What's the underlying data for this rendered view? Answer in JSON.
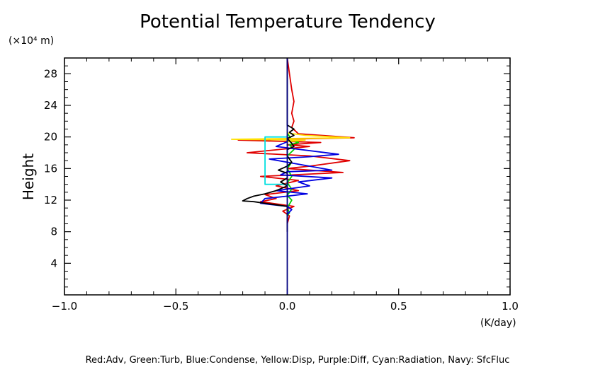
{
  "chart_data": {
    "type": "line",
    "title": "Potential Temperature Tendency",
    "ylabel": "Height",
    "yunit": "(×10⁴ m)",
    "xunit": "(K/day)",
    "xlim": [
      -1.0,
      1.0
    ],
    "ylim": [
      0,
      30
    ],
    "x_ticks": [
      -1.0,
      -0.5,
      0.0,
      0.5,
      1.0
    ],
    "x_tick_labels": [
      "−1.0",
      "−0.5",
      "0.0",
      "0.5",
      "1.0"
    ],
    "y_ticks": [
      4,
      8,
      12,
      16,
      20,
      24,
      28
    ],
    "y_tick_labels": [
      "4",
      "8",
      "12",
      "16",
      "20",
      "24",
      "28"
    ],
    "grid": false,
    "legend_text": "Red:Adv, Green:Turb, Blue:Condense, Yellow:Disp, Purple:Diff, Cyan:Radiation, Navy: SfcFluc",
    "series": [
      {
        "name": "Red:Adv",
        "color": "#e00000",
        "points": [
          [
            0.0,
            30.0
          ],
          [
            0.01,
            28.0
          ],
          [
            0.02,
            26.0
          ],
          [
            0.03,
            24.5
          ],
          [
            0.02,
            23.0
          ],
          [
            0.03,
            22.0
          ],
          [
            0.02,
            21.2
          ],
          [
            0.05,
            20.4
          ],
          [
            0.3,
            19.9
          ],
          [
            -0.22,
            19.6
          ],
          [
            0.15,
            19.3
          ],
          [
            0.0,
            19.0
          ],
          [
            0.1,
            18.8
          ],
          [
            -0.18,
            18.0
          ],
          [
            0.1,
            17.6
          ],
          [
            0.28,
            17.0
          ],
          [
            0.1,
            16.3
          ],
          [
            0.0,
            16.0
          ],
          [
            0.25,
            15.5
          ],
          [
            -0.12,
            15.0
          ],
          [
            0.05,
            14.5
          ],
          [
            -0.05,
            13.8
          ],
          [
            0.05,
            13.2
          ],
          [
            -0.1,
            12.7
          ],
          [
            -0.05,
            12.2
          ],
          [
            -0.12,
            11.8
          ],
          [
            0.03,
            11.2
          ],
          [
            -0.02,
            10.6
          ],
          [
            0.01,
            10.0
          ],
          [
            0.0,
            9.0
          ],
          [
            0.0,
            8.0
          ]
        ]
      },
      {
        "name": "Green:Turb",
        "color": "#00d000",
        "points": [
          [
            0.0,
            20.5
          ],
          [
            0.02,
            19.6
          ],
          [
            0.05,
            19.3
          ],
          [
            0.01,
            19.0
          ],
          [
            0.03,
            18.4
          ],
          [
            0.0,
            17.6
          ],
          [
            0.02,
            16.8
          ],
          [
            0.0,
            16.0
          ],
          [
            0.02,
            15.0
          ],
          [
            0.0,
            14.2
          ],
          [
            0.02,
            13.4
          ],
          [
            0.0,
            12.6
          ],
          [
            0.02,
            12.0
          ],
          [
            0.0,
            11.0
          ],
          [
            0.01,
            10.4
          ],
          [
            0.0,
            10.0
          ]
        ]
      },
      {
        "name": "Blue:Condense",
        "color": "#0000e0",
        "points": [
          [
            0.0,
            20.2
          ],
          [
            0.0,
            19.4
          ],
          [
            -0.05,
            18.8
          ],
          [
            0.23,
            17.8
          ],
          [
            0.1,
            17.5
          ],
          [
            -0.08,
            17.2
          ],
          [
            0.1,
            16.3
          ],
          [
            0.2,
            15.8
          ],
          [
            0.0,
            15.6
          ],
          [
            -0.03,
            15.2
          ],
          [
            0.2,
            14.8
          ],
          [
            0.05,
            14.3
          ],
          [
            0.1,
            13.8
          ],
          [
            -0.05,
            13.2
          ],
          [
            0.09,
            12.8
          ],
          [
            0.0,
            12.5
          ],
          [
            -0.1,
            12.2
          ],
          [
            -0.12,
            11.6
          ],
          [
            0.0,
            11.2
          ],
          [
            0.02,
            10.8
          ],
          [
            0.0,
            10.2
          ]
        ]
      },
      {
        "name": "Yellow:Disp",
        "color": "#ffe000",
        "points": [
          [
            0.0,
            21.0
          ],
          [
            0.0,
            20.5
          ],
          [
            0.08,
            20.2
          ],
          [
            0.28,
            19.9
          ],
          [
            -0.25,
            19.7
          ],
          [
            0.08,
            19.6
          ],
          [
            0.0,
            19.4
          ],
          [
            0.0,
            19.0
          ]
        ]
      },
      {
        "name": "Cyan:Radiation",
        "color": "#00e0e0",
        "points": [
          [
            0.0,
            20.0
          ],
          [
            -0.1,
            20.0
          ],
          [
            -0.1,
            14.0
          ],
          [
            0.0,
            14.0
          ]
        ]
      },
      {
        "name": "Black",
        "color": "#000000",
        "points": [
          [
            0.0,
            30.0
          ],
          [
            0.0,
            22.0
          ],
          [
            0.0,
            21.5
          ],
          [
            0.03,
            21.0
          ],
          [
            0.01,
            20.6
          ],
          [
            0.03,
            20.2
          ],
          [
            0.0,
            19.8
          ],
          [
            0.02,
            19.2
          ],
          [
            0.03,
            18.8
          ],
          [
            0.0,
            18.4
          ],
          [
            0.0,
            17.6
          ],
          [
            0.02,
            16.8
          ],
          [
            0.0,
            16.3
          ],
          [
            -0.04,
            15.8
          ],
          [
            0.0,
            15.4
          ],
          [
            0.0,
            14.8
          ],
          [
            -0.03,
            14.3
          ],
          [
            0.0,
            13.8
          ],
          [
            -0.05,
            13.2
          ],
          [
            -0.1,
            12.8
          ],
          [
            -0.15,
            12.5
          ],
          [
            -0.18,
            12.2
          ],
          [
            -0.2,
            11.9
          ],
          [
            -0.15,
            11.8
          ],
          [
            -0.1,
            11.6
          ],
          [
            -0.05,
            11.4
          ],
          [
            0.0,
            11.2
          ],
          [
            0.0,
            8.0
          ]
        ]
      }
    ],
    "zero_line": {
      "name": "Navy: SfcFluc",
      "color": "#000080",
      "x": 0.0,
      "y_range": [
        0,
        30
      ]
    }
  }
}
